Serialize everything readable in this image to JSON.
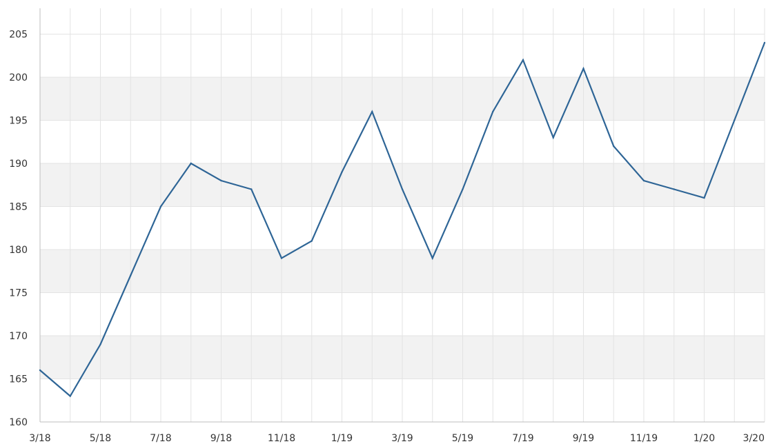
{
  "chart_data": {
    "type": "line",
    "title": "",
    "xlabel": "",
    "ylabel": "",
    "x": [
      "3/18",
      "4/18",
      "5/18",
      "6/18",
      "7/18",
      "8/18",
      "9/18",
      "10/18",
      "11/18",
      "12/18",
      "1/19",
      "2/19",
      "3/19",
      "4/19",
      "5/19",
      "6/19",
      "7/19",
      "8/19",
      "9/19",
      "10/19",
      "11/19",
      "12/19",
      "1/20",
      "2/20",
      "3/20"
    ],
    "x_tick_labels": [
      "3/18",
      "5/18",
      "7/18",
      "9/18",
      "11/18",
      "1/19",
      "3/19",
      "5/19",
      "7/19",
      "9/19",
      "11/19",
      "1/20",
      "3/20"
    ],
    "series": [
      {
        "values": [
          166,
          163,
          169,
          177,
          185,
          190,
          188,
          187,
          179,
          181,
          189,
          196,
          187,
          179,
          187,
          196,
          202,
          193,
          201,
          192,
          188,
          187,
          186,
          195,
          204
        ]
      }
    ],
    "y_ticks": [
      160,
      165,
      170,
      175,
      180,
      185,
      190,
      195,
      200,
      205
    ],
    "ylim": [
      160,
      208
    ],
    "grid": true,
    "line_color": "#2e6596",
    "band_color": "#f2f2f2",
    "grid_color": "#e3e3e3",
    "axis_color": "#bdbdbd"
  }
}
